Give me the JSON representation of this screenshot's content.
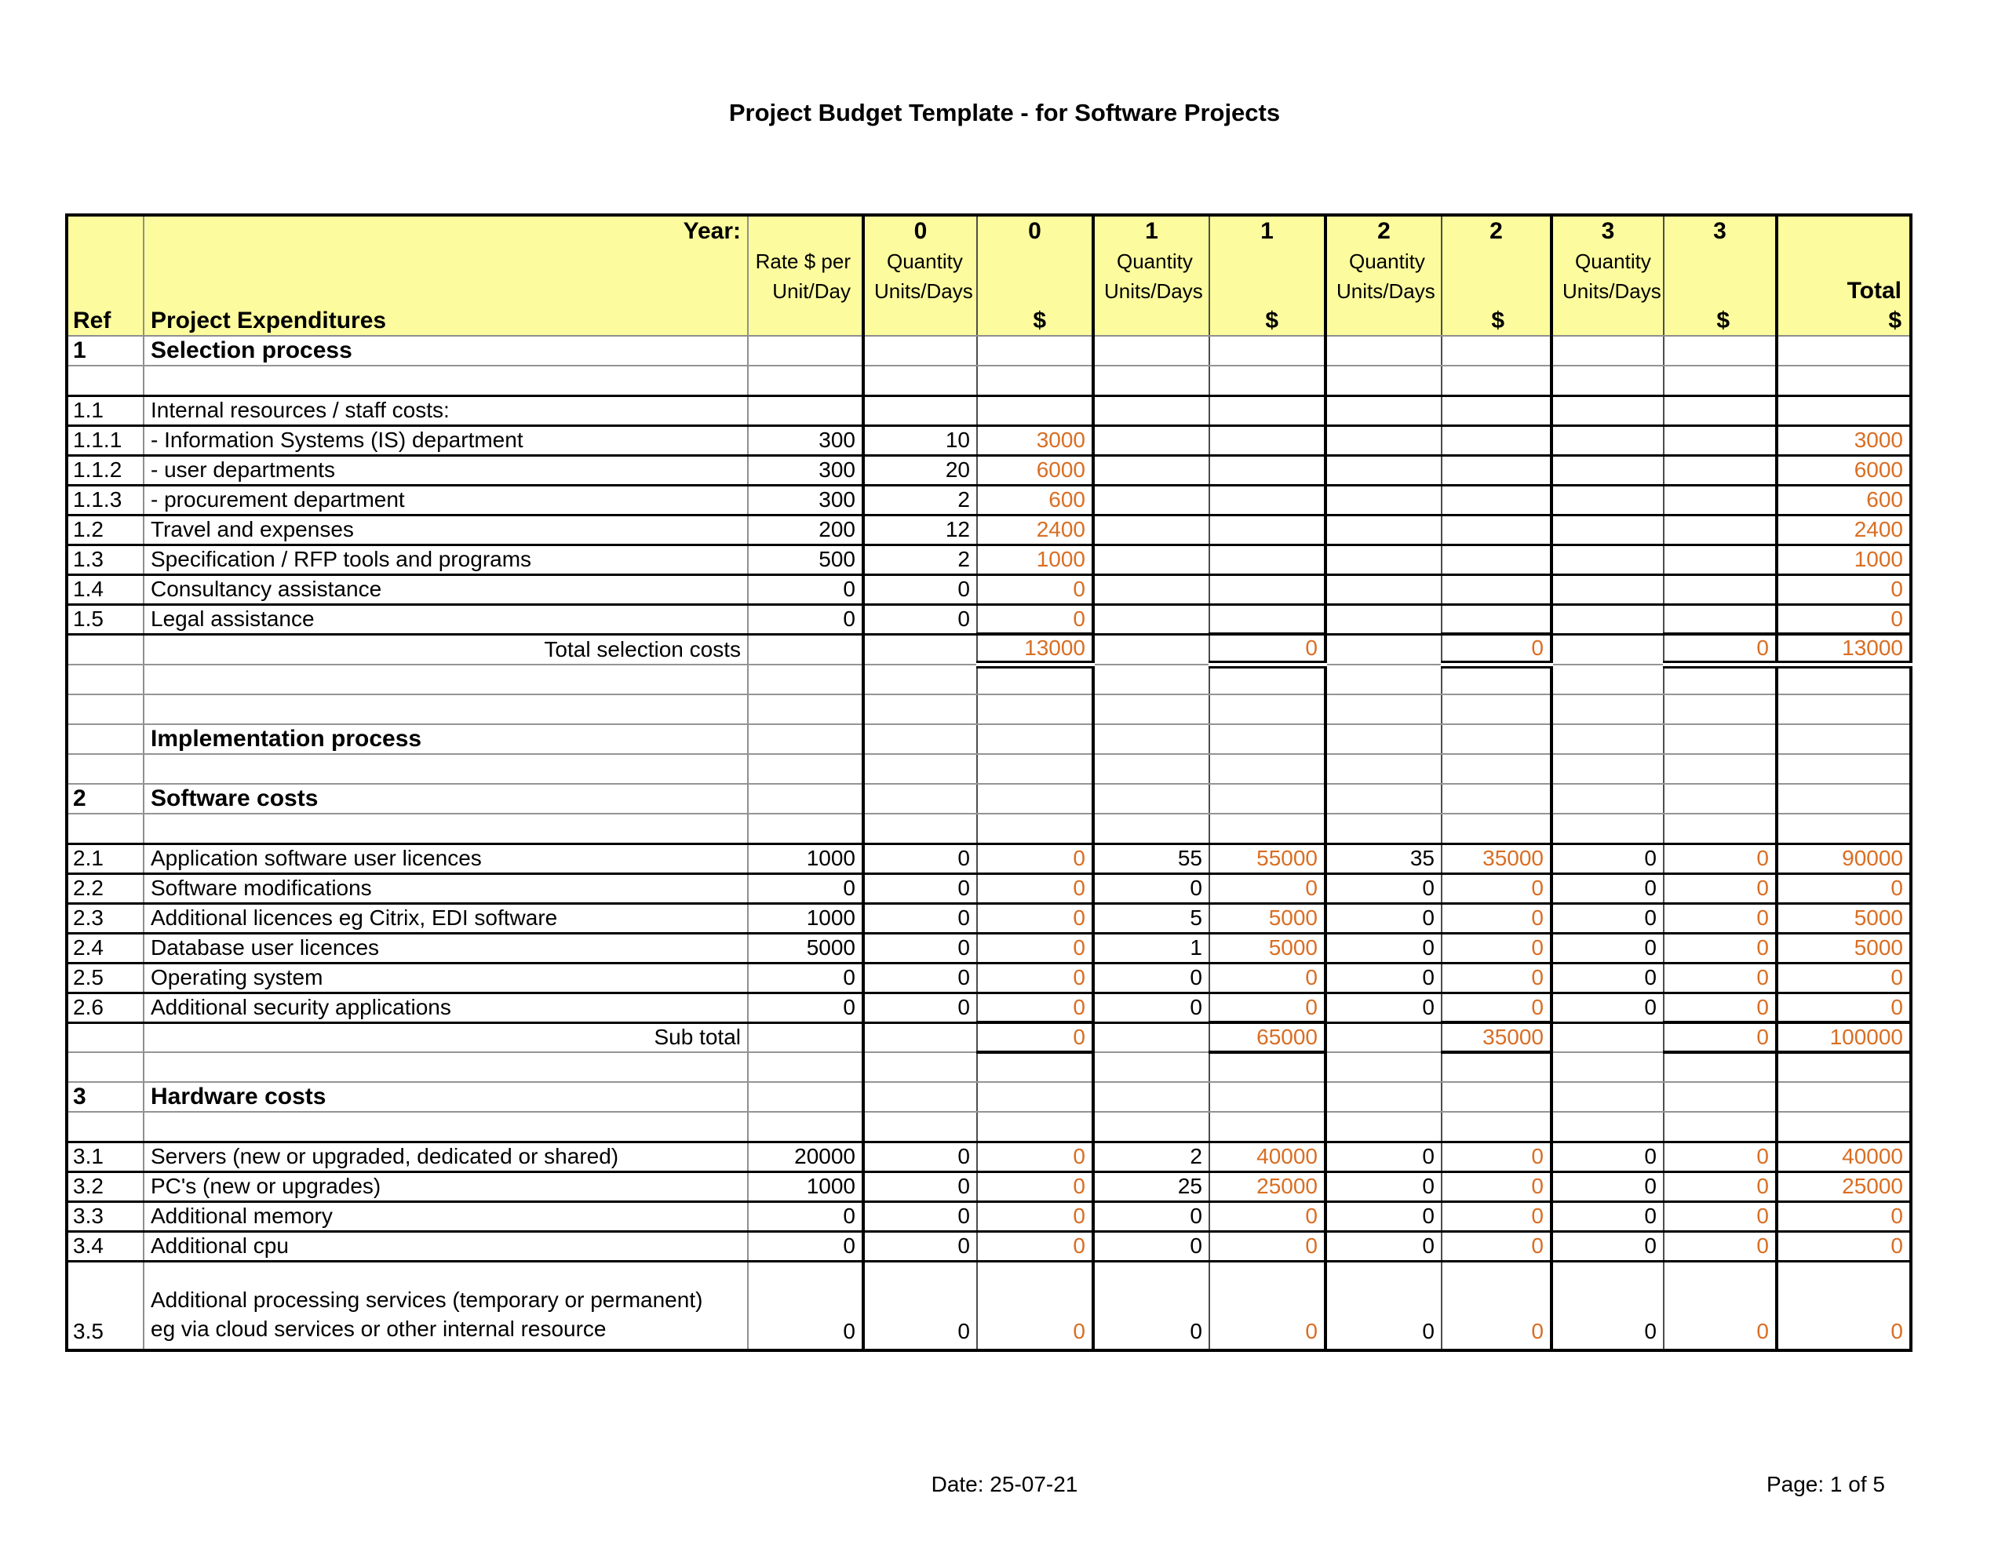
{
  "title": "Project Budget Template - for Software Projects",
  "colors": {
    "header_bg": "#FCFC9E",
    "computed_value": "#D96E23"
  },
  "header": {
    "year_label": "Year:",
    "years": [
      "0",
      "1",
      "2",
      "3"
    ],
    "rate_label_1": "Rate $ per",
    "rate_label_2": "Unit/Day",
    "quantity": "Quantity",
    "units": "Units/Days",
    "dollar": "$",
    "ref_label": "Ref",
    "expend_label": "Project Expenditures",
    "total_label": "Total"
  },
  "rows": [
    {
      "type": "section",
      "ref": "1",
      "desc": "Selection process"
    },
    {
      "type": "blank"
    },
    {
      "type": "item",
      "ref": "1.1",
      "desc": "Internal resources / staff costs:"
    },
    {
      "type": "item",
      "ref": "1.1.1",
      "desc": "- Information Systems (IS) department",
      "rate": "300",
      "q0": "10",
      "d0": "3000",
      "total": "3000"
    },
    {
      "type": "item",
      "ref": "1.1.2",
      "desc": "- user departments",
      "rate": "300",
      "q0": "20",
      "d0": "6000",
      "total": "6000"
    },
    {
      "type": "item",
      "ref": "1.1.3",
      "desc": "- procurement department",
      "rate": "300",
      "q0": "2",
      "d0": "600",
      "total": "600"
    },
    {
      "type": "item",
      "ref": "1.2",
      "desc": "Travel and expenses",
      "rate": "200",
      "q0": "12",
      "d0": "2400",
      "total": "2400"
    },
    {
      "type": "item",
      "ref": "1.3",
      "desc": "Specification / RFP tools and programs",
      "rate": "500",
      "q0": "2",
      "d0": "1000",
      "total": "1000"
    },
    {
      "type": "item",
      "ref": "1.4",
      "desc": "Consultancy assistance",
      "rate": "0",
      "q0": "0",
      "d0": "0",
      "total": "0"
    },
    {
      "type": "item",
      "ref": "1.5",
      "desc": "Legal assistance",
      "rate": "0",
      "q0": "0",
      "d0": "0",
      "total": "0"
    },
    {
      "type": "total",
      "desc": "Total selection costs",
      "d0": "13000",
      "d1": "0",
      "d2": "0",
      "d3": "0",
      "total": "13000"
    },
    {
      "type": "blank"
    },
    {
      "type": "blank"
    },
    {
      "type": "section",
      "desc": "Implementation process"
    },
    {
      "type": "blank"
    },
    {
      "type": "section",
      "ref": "2",
      "desc": "Software costs"
    },
    {
      "type": "blank"
    },
    {
      "type": "item",
      "ref": "2.1",
      "desc": "Application software user licences",
      "rate": "1000",
      "q0": "0",
      "d0": "0",
      "q1": "55",
      "d1": "55000",
      "q2": "35",
      "d2": "35000",
      "q3": "0",
      "d3": "0",
      "total": "90000"
    },
    {
      "type": "item",
      "ref": "2.2",
      "desc": "Software modifications",
      "rate": "0",
      "q0": "0",
      "d0": "0",
      "q1": "0",
      "d1": "0",
      "q2": "0",
      "d2": "0",
      "q3": "0",
      "d3": "0",
      "total": "0"
    },
    {
      "type": "item",
      "ref": "2.3",
      "desc": "Additional licences eg Citrix, EDI software",
      "rate": "1000",
      "q0": "0",
      "d0": "0",
      "q1": "5",
      "d1": "5000",
      "q2": "0",
      "d2": "0",
      "q3": "0",
      "d3": "0",
      "total": "5000"
    },
    {
      "type": "item",
      "ref": "2.4",
      "desc": "Database user licences",
      "rate": "5000",
      "q0": "0",
      "d0": "0",
      "q1": "1",
      "d1": "5000",
      "q2": "0",
      "d2": "0",
      "q3": "0",
      "d3": "0",
      "total": "5000"
    },
    {
      "type": "item",
      "ref": "2.5",
      "desc": "Operating system",
      "rate": "0",
      "q0": "0",
      "d0": "0",
      "q1": "0",
      "d1": "0",
      "q2": "0",
      "d2": "0",
      "q3": "0",
      "d3": "0",
      "total": "0"
    },
    {
      "type": "item",
      "ref": "2.6",
      "desc": "Additional security applications",
      "rate": "0",
      "q0": "0",
      "d0": "0",
      "q1": "0",
      "d1": "0",
      "q2": "0",
      "d2": "0",
      "q3": "0",
      "d3": "0",
      "total": "0"
    },
    {
      "type": "subtotal",
      "desc": "Sub total",
      "d0": "0",
      "d1": "65000",
      "d2": "35000",
      "d3": "0",
      "total": "100000"
    },
    {
      "type": "blank"
    },
    {
      "type": "section",
      "ref": "3",
      "desc": "Hardware costs"
    },
    {
      "type": "blank"
    },
    {
      "type": "item",
      "ref": "3.1",
      "desc": "Servers (new or upgraded, dedicated or shared)",
      "rate": "20000",
      "q0": "0",
      "d0": "0",
      "q1": "2",
      "d1": "40000",
      "q2": "0",
      "d2": "0",
      "q3": "0",
      "d3": "0",
      "total": "40000"
    },
    {
      "type": "item",
      "ref": "3.2",
      "desc": "PC's (new or upgrades)",
      "rate": "1000",
      "q0": "0",
      "d0": "0",
      "q1": "25",
      "d1": "25000",
      "q2": "0",
      "d2": "0",
      "q3": "0",
      "d3": "0",
      "total": "25000"
    },
    {
      "type": "item",
      "ref": "3.3",
      "desc": "Additional memory",
      "rate": "0",
      "q0": "0",
      "d0": "0",
      "q1": "0",
      "d1": "0",
      "q2": "0",
      "d2": "0",
      "q3": "0",
      "d3": "0",
      "total": "0"
    },
    {
      "type": "item",
      "ref": "3.4",
      "desc": "Additional cpu",
      "rate": "0",
      "q0": "0",
      "d0": "0",
      "q1": "0",
      "d1": "0",
      "q2": "0",
      "d2": "0",
      "q3": "0",
      "d3": "0",
      "total": "0"
    },
    {
      "type": "item-tall",
      "ref": "3.5",
      "desc": "Additional processing services (temporary or permanent)\neg via cloud services or other internal resource",
      "rate": "0",
      "q0": "0",
      "d0": "0",
      "q1": "0",
      "d1": "0",
      "q2": "0",
      "d2": "0",
      "q3": "0",
      "d3": "0",
      "total": "0"
    }
  ],
  "footer": {
    "date": "Date: 25-07-21",
    "page": "Page: 1 of 5"
  }
}
